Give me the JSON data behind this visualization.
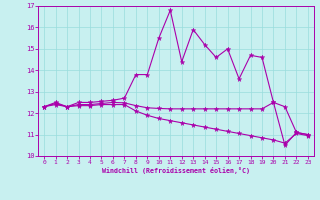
{
  "xlabel": "Windchill (Refroidissement éolien,°C)",
  "xlim": [
    -0.5,
    23.5
  ],
  "ylim": [
    10,
    17
  ],
  "xticks": [
    0,
    1,
    2,
    3,
    4,
    5,
    6,
    7,
    8,
    9,
    10,
    11,
    12,
    13,
    14,
    15,
    16,
    17,
    18,
    19,
    20,
    21,
    22,
    23
  ],
  "yticks": [
    10,
    11,
    12,
    13,
    14,
    15,
    16,
    17
  ],
  "bg_color": "#c8f0f0",
  "line_color": "#aa00aa",
  "grid_color": "#99dddd",
  "line1_y": [
    12.3,
    12.5,
    12.3,
    12.5,
    12.5,
    12.55,
    12.6,
    12.7,
    13.8,
    13.8,
    15.5,
    16.8,
    14.4,
    15.9,
    15.2,
    14.6,
    15.0,
    13.6,
    14.7,
    14.6,
    12.5,
    10.5,
    11.1,
    11.0
  ],
  "line2_y": [
    12.3,
    12.45,
    12.3,
    12.4,
    12.4,
    12.45,
    12.5,
    12.48,
    12.35,
    12.25,
    12.22,
    12.2,
    12.2,
    12.2,
    12.2,
    12.2,
    12.2,
    12.2,
    12.2,
    12.2,
    12.5,
    12.3,
    11.1,
    11.0
  ],
  "line3_y": [
    12.3,
    12.4,
    12.3,
    12.35,
    12.35,
    12.4,
    12.4,
    12.4,
    12.1,
    11.9,
    11.75,
    11.65,
    11.55,
    11.45,
    11.35,
    11.25,
    11.15,
    11.05,
    10.95,
    10.85,
    10.75,
    10.6,
    11.05,
    10.95
  ]
}
